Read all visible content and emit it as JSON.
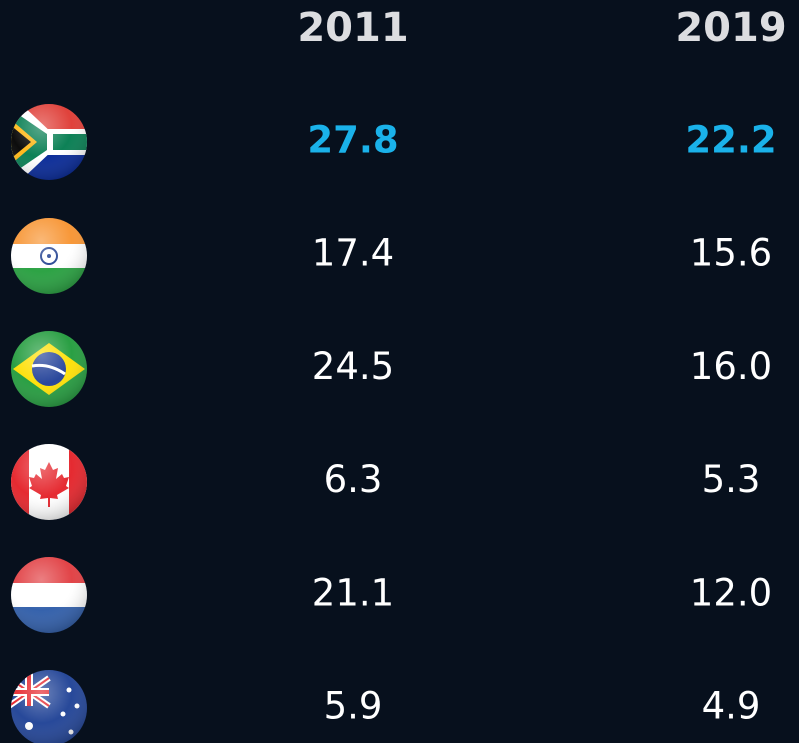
{
  "table": {
    "columns": [
      "2011",
      "2019"
    ],
    "rows": [
      [
        "27.8",
        "22.2"
      ],
      [
        "17.4",
        "15.6"
      ],
      [
        "24.5",
        "16.0"
      ],
      [
        "6.3",
        "5.3"
      ],
      [
        "21.1",
        "12.0"
      ],
      [
        "5.9",
        "4.9"
      ]
    ]
  }
}
